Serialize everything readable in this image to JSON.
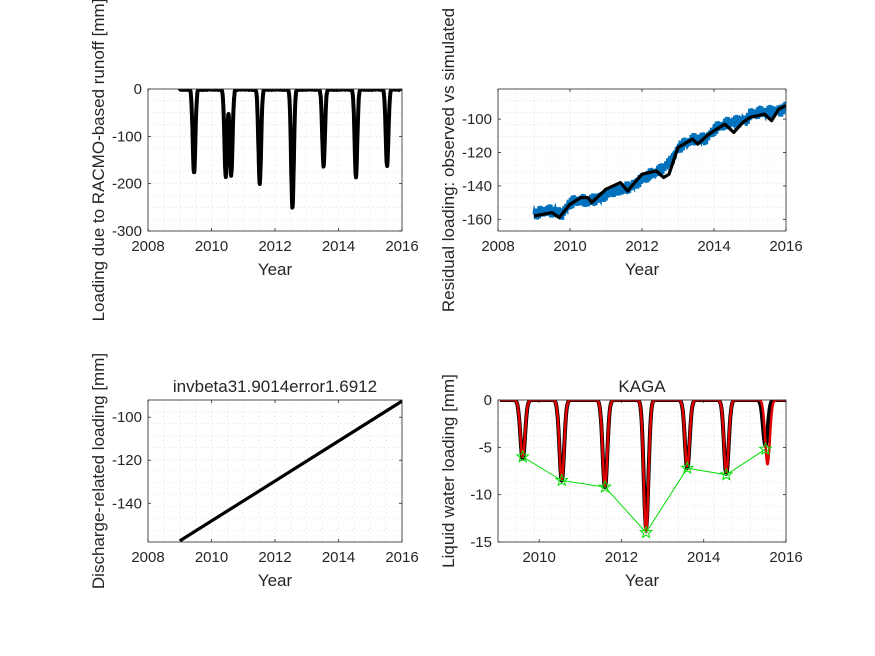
{
  "chart_data": [
    {
      "type": "line",
      "position": "top-left",
      "title": "",
      "xlabel": "Year",
      "ylabel": "Loading due to RACMO-based runoff [mm]",
      "xlim": [
        2008,
        2016
      ],
      "ylim": [
        -300,
        0
      ],
      "xticks": [
        2008,
        2010,
        2012,
        2014,
        2016
      ],
      "yticks": [
        -300,
        -200,
        -100,
        0
      ],
      "grid": "dotted",
      "series": [
        {
          "color": "#000000",
          "style": "thick line",
          "seasonal_troughs": [
            {
              "x": 2009.45,
              "y": -178
            },
            {
              "x": 2010.45,
              "y": -185
            },
            {
              "x": 2010.62,
              "y": -183
            },
            {
              "x": 2011.52,
              "y": -200
            },
            {
              "x": 2012.55,
              "y": -253
            },
            {
              "x": 2013.53,
              "y": -163
            },
            {
              "x": 2014.55,
              "y": -185
            },
            {
              "x": 2015.53,
              "y": -163
            }
          ]
        }
      ]
    },
    {
      "type": "line",
      "position": "top-right",
      "title": "",
      "xlabel": "Year",
      "ylabel": "Residual loading: observed vs simulated",
      "xlim": [
        2008,
        2016
      ],
      "ylim": [
        -167,
        -82
      ],
      "xticks": [
        2008,
        2010,
        2012,
        2014,
        2016
      ],
      "yticks": [
        -160,
        -140,
        -120,
        -100
      ],
      "grid": "dotted",
      "series": [
        {
          "color": "#0072BD",
          "style": "noisy observed",
          "x": [
            2009.0,
            2009.5,
            2009.8,
            2010.0,
            2010.5,
            2011.0,
            2011.5,
            2011.9,
            2012.0,
            2012.5,
            2012.9,
            2013.0,
            2013.5,
            2013.8,
            2014.0,
            2014.5,
            2014.9,
            2015.0,
            2015.5,
            2015.9,
            2016.0
          ],
          "y": [
            -157,
            -155,
            -156,
            -150,
            -149,
            -145,
            -142,
            -137,
            -136,
            -131,
            -122,
            -117,
            -112,
            -111,
            -106,
            -102,
            -100,
            -97,
            -96,
            -94,
            -92
          ]
        },
        {
          "color": "#000000",
          "style": "smoothed",
          "x": [
            2009.0,
            2009.5,
            2009.7,
            2010.0,
            2010.3,
            2010.5,
            2010.6,
            2011.0,
            2011.4,
            2011.6,
            2012.0,
            2012.4,
            2012.6,
            2012.75,
            2013.0,
            2013.4,
            2013.55,
            2013.8,
            2014.0,
            2014.3,
            2014.55,
            2014.8,
            2015.0,
            2015.4,
            2015.6,
            2015.8,
            2016.0
          ],
          "y": [
            -158,
            -156,
            -159,
            -151,
            -147,
            -147,
            -150,
            -142,
            -138,
            -143,
            -133,
            -131,
            -135,
            -133,
            -117,
            -112,
            -115,
            -110,
            -107,
            -103,
            -108,
            -102,
            -99,
            -97,
            -101,
            -94,
            -92
          ]
        }
      ]
    },
    {
      "type": "line",
      "position": "bottom-left",
      "title": "invbeta31.9014error1.6912",
      "xlabel": "Year",
      "ylabel": "Discharge-related loading [mm]",
      "xlim": [
        2008,
        2016
      ],
      "ylim": [
        -158,
        -92
      ],
      "xticks": [
        2008,
        2010,
        2012,
        2014,
        2016
      ],
      "yticks": [
        -140,
        -120,
        -100
      ],
      "grid": "dotted",
      "series": [
        {
          "color": "#000000",
          "style": "thick line",
          "x": [
            2009.0,
            2016.0
          ],
          "y": [
            -157.5,
            -92.5
          ]
        }
      ]
    },
    {
      "type": "line",
      "position": "bottom-right",
      "title": "KAGA",
      "xlabel": "Year",
      "ylabel": "Liquid water loading [mm]",
      "xlim": [
        2009,
        2016
      ],
      "ylim": [
        -15,
        0
      ],
      "xticks": [
        2010,
        2012,
        2014,
        2016
      ],
      "yticks": [
        -15,
        -10,
        -5,
        0
      ],
      "grid": "dotted",
      "series": [
        {
          "color": "#000000",
          "style": "seasonal thick line",
          "seasonal_troughs": [
            {
              "x": 2009.6,
              "y": -6.2
            },
            {
              "x": 2010.55,
              "y": -8.5
            },
            {
              "x": 2011.6,
              "y": -9.2
            },
            {
              "x": 2012.6,
              "y": -13.5
            },
            {
              "x": 2013.6,
              "y": -7.2
            },
            {
              "x": 2014.55,
              "y": -7.8
            },
            {
              "x": 2015.5,
              "y": -4.8
            }
          ]
        },
        {
          "color": "#E00000",
          "style": "seasonal line",
          "seasonal_troughs": [
            {
              "x": 2009.6,
              "y": -6.0
            },
            {
              "x": 2010.55,
              "y": -8.4
            },
            {
              "x": 2011.6,
              "y": -9.1
            },
            {
              "x": 2012.6,
              "y": -14.0
            },
            {
              "x": 2013.6,
              "y": -7.0
            },
            {
              "x": 2014.55,
              "y": -7.6
            },
            {
              "x": 2015.55,
              "y": -6.8
            }
          ]
        },
        {
          "color": "#00E000",
          "style": "line with star markers",
          "x": [
            2009.6,
            2010.55,
            2011.6,
            2012.6,
            2013.6,
            2014.55,
            2015.5
          ],
          "y": [
            -6.0,
            -8.5,
            -9.2,
            -14.0,
            -7.2,
            -7.9,
            -5.2
          ]
        }
      ]
    }
  ]
}
